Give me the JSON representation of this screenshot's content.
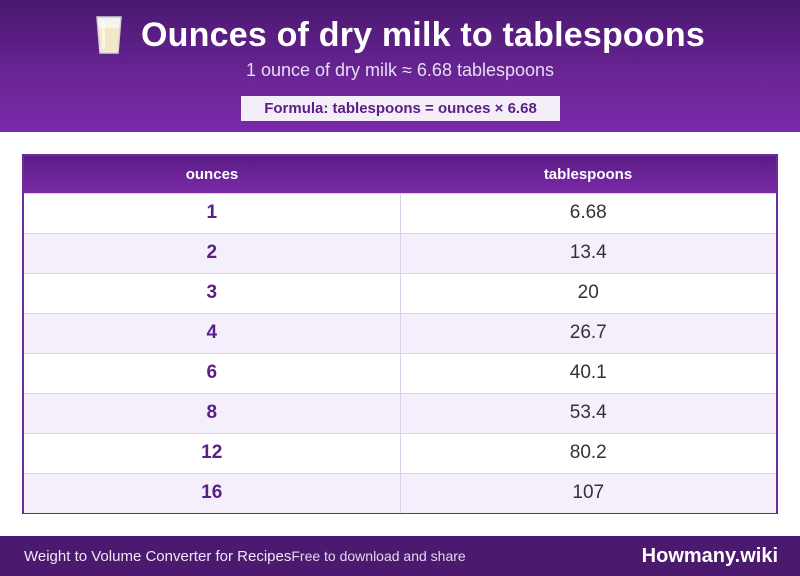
{
  "header": {
    "title": "Ounces of dry milk to tablespoons",
    "icon": "milk-glass-icon",
    "subtitle": "1 ounce of dry milk ≈ 6.68 tablespoons",
    "formula": "Formula: tablespoons = ounces × 6.68"
  },
  "table": {
    "columns": [
      "ounces",
      "tablespoons"
    ],
    "rows": [
      [
        "1",
        "6.68"
      ],
      [
        "2",
        "13.4"
      ],
      [
        "3",
        "20"
      ],
      [
        "4",
        "26.7"
      ],
      [
        "6",
        "40.1"
      ],
      [
        "8",
        "53.4"
      ],
      [
        "12",
        "80.2"
      ],
      [
        "16",
        "107"
      ]
    ]
  },
  "footer": {
    "left": "Weight to Volume Converter for Recipes",
    "note": "Free to download and share",
    "brand": "Howmany.wiki"
  },
  "colors": {
    "primary": "#6a2596",
    "dark": "#4b1a6e",
    "row_alt": "#f4effa"
  }
}
